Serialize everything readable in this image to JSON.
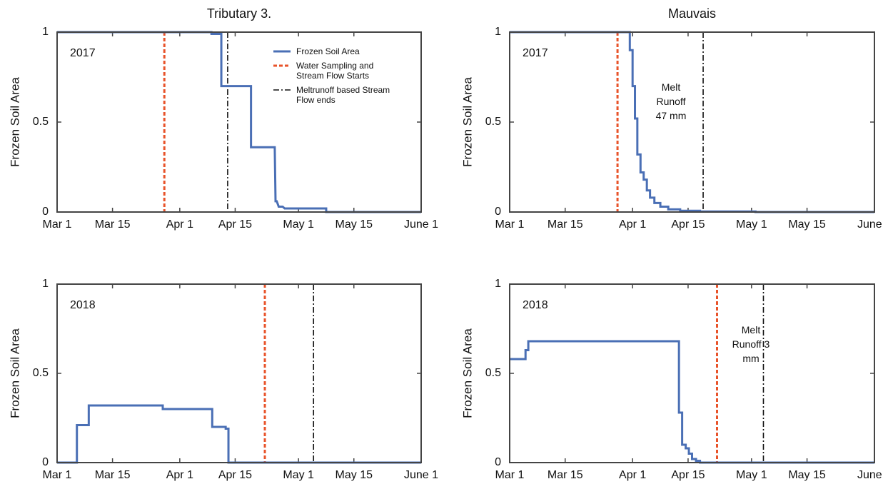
{
  "chart_data": [
    {
      "type": "line",
      "title": "Tributary 3.",
      "ylabel": "Frozen Soil Area",
      "annotations": [
        "2017"
      ],
      "xlim": [
        0,
        92
      ],
      "ylim": [
        0,
        1
      ],
      "xticks": [
        {
          "value": 0,
          "label": "Mar 1"
        },
        {
          "value": 14,
          "label": "Mar 15"
        },
        {
          "value": 31,
          "label": "Apr 1"
        },
        {
          "value": 45,
          "label": "Apr 15"
        },
        {
          "value": 61,
          "label": "May 1"
        },
        {
          "value": 75,
          "label": "May 15"
        },
        {
          "value": 92,
          "label": "June 1"
        }
      ],
      "yticks": [
        0,
        0.5,
        1
      ],
      "series": [
        {
          "name": "Frozen Soil Area",
          "color": "#4a6fb5",
          "x": [
            0,
            39,
            39,
            41.5,
            41.5,
            49,
            49,
            55,
            55.2,
            55.5,
            56,
            57,
            57.5,
            68,
            68,
            92
          ],
          "values": [
            1,
            1,
            0.99,
            0.99,
            0.7,
            0.7,
            0.36,
            0.36,
            0.06,
            0.06,
            0.03,
            0.03,
            0.02,
            0.02,
            0,
            0
          ]
        }
      ],
      "vlines": [
        {
          "name": "Water Sampling and Stream Flow Starts",
          "color": "#e8532a",
          "style": "dashed",
          "x": 27.1
        },
        {
          "name": "Meltrunoff based Stream Flow ends",
          "color": "#111111",
          "style": "dashdot",
          "x": 43.1
        }
      ]
    },
    {
      "type": "line",
      "title": "Mauvais",
      "ylabel": "Frozen Soil Area",
      "annotations": [
        "2017",
        "Melt Runoff 47 mm"
      ],
      "xlim": [
        0,
        92
      ],
      "ylim": [
        0,
        1
      ],
      "xticks": [
        {
          "value": 0,
          "label": "Mar 1"
        },
        {
          "value": 14,
          "label": "Mar 15"
        },
        {
          "value": 31,
          "label": "Apr 1"
        },
        {
          "value": 45,
          "label": "Apr 15"
        },
        {
          "value": 61,
          "label": "May 1"
        },
        {
          "value": 75,
          "label": "May 15"
        },
        {
          "value": 92,
          "label": "June 1"
        }
      ],
      "yticks": [
        0,
        0.5,
        1
      ],
      "series": [
        {
          "color": "#4a6fb5",
          "x": [
            0,
            30.3,
            30.3,
            31,
            31,
            31.6,
            31.6,
            32.2,
            32.2,
            33,
            33,
            33.8,
            33.8,
            34.6,
            34.6,
            35.4,
            35.4,
            36.5,
            36.5,
            38,
            38,
            40,
            40,
            43,
            43,
            48,
            48,
            62,
            62,
            92
          ],
          "values": [
            1,
            1,
            0.9,
            0.9,
            0.7,
            0.7,
            0.52,
            0.52,
            0.32,
            0.32,
            0.22,
            0.22,
            0.18,
            0.18,
            0.12,
            0.12,
            0.08,
            0.08,
            0.05,
            0.05,
            0.03,
            0.03,
            0.015,
            0.015,
            0.007,
            0.007,
            0.003,
            0.003,
            0,
            0
          ]
        }
      ],
      "vlines": [
        {
          "color": "#e8532a",
          "style": "dashed",
          "x": 27.2
        },
        {
          "color": "#111111",
          "style": "dashdot",
          "x": 48.8
        }
      ]
    },
    {
      "type": "line",
      "ylabel": "Frozen Soil Area",
      "annotations": [
        "2018"
      ],
      "xlim": [
        0,
        92
      ],
      "ylim": [
        0,
        1
      ],
      "xticks": [
        {
          "value": 0,
          "label": "Mar 1"
        },
        {
          "value": 14,
          "label": "Mar 15"
        },
        {
          "value": 31,
          "label": "Apr 1"
        },
        {
          "value": 45,
          "label": "Apr 15"
        },
        {
          "value": 61,
          "label": "May 1"
        },
        {
          "value": 75,
          "label": "May 15"
        },
        {
          "value": 92,
          "label": "June 1"
        }
      ],
      "yticks": [
        0,
        0.5,
        1
      ],
      "series": [
        {
          "color": "#4a6fb5",
          "x": [
            0,
            5,
            5,
            8,
            8,
            26.7,
            26.7,
            39.2,
            39.2,
            42.6,
            42.6,
            43.3,
            43.3,
            92
          ],
          "values": [
            0,
            0,
            0.21,
            0.21,
            0.32,
            0.32,
            0.3,
            0.3,
            0.2,
            0.2,
            0.19,
            0.19,
            0,
            0
          ]
        }
      ],
      "vlines": [
        {
          "color": "#e8532a",
          "style": "dashed",
          "x": 52.5
        },
        {
          "color": "#111111",
          "style": "dashdot",
          "x": 64.8
        }
      ]
    },
    {
      "type": "line",
      "ylabel": "Frozen Soil Area",
      "annotations": [
        "2018",
        "Melt Runoff 3 mm"
      ],
      "xlim": [
        0,
        92
      ],
      "ylim": [
        0,
        1
      ],
      "xticks": [
        {
          "value": 0,
          "label": "Mar 1"
        },
        {
          "value": 14,
          "label": "Mar 15"
        },
        {
          "value": 31,
          "label": "Apr 1"
        },
        {
          "value": 45,
          "label": "Apr 15"
        },
        {
          "value": 61,
          "label": "May 1"
        },
        {
          "value": 75,
          "label": "May 15"
        },
        {
          "value": 92,
          "label": "June 1"
        }
      ],
      "yticks": [
        0,
        0.5,
        1
      ],
      "series": [
        {
          "color": "#4a6fb5",
          "x": [
            0,
            4,
            4,
            4.7,
            4.7,
            42.7,
            42.7,
            43.5,
            43.5,
            44.4,
            44.4,
            45.2,
            45.2,
            46,
            46,
            47,
            47,
            48,
            48,
            92
          ],
          "values": [
            0.58,
            0.58,
            0.63,
            0.63,
            0.68,
            0.68,
            0.28,
            0.28,
            0.1,
            0.1,
            0.08,
            0.08,
            0.05,
            0.05,
            0.02,
            0.02,
            0.01,
            0.01,
            0,
            0
          ]
        }
      ],
      "vlines": [
        {
          "color": "#e8532a",
          "style": "dashed",
          "x": 52.3
        },
        {
          "color": "#111111",
          "style": "dashdot",
          "x": 64
        }
      ]
    }
  ]
}
